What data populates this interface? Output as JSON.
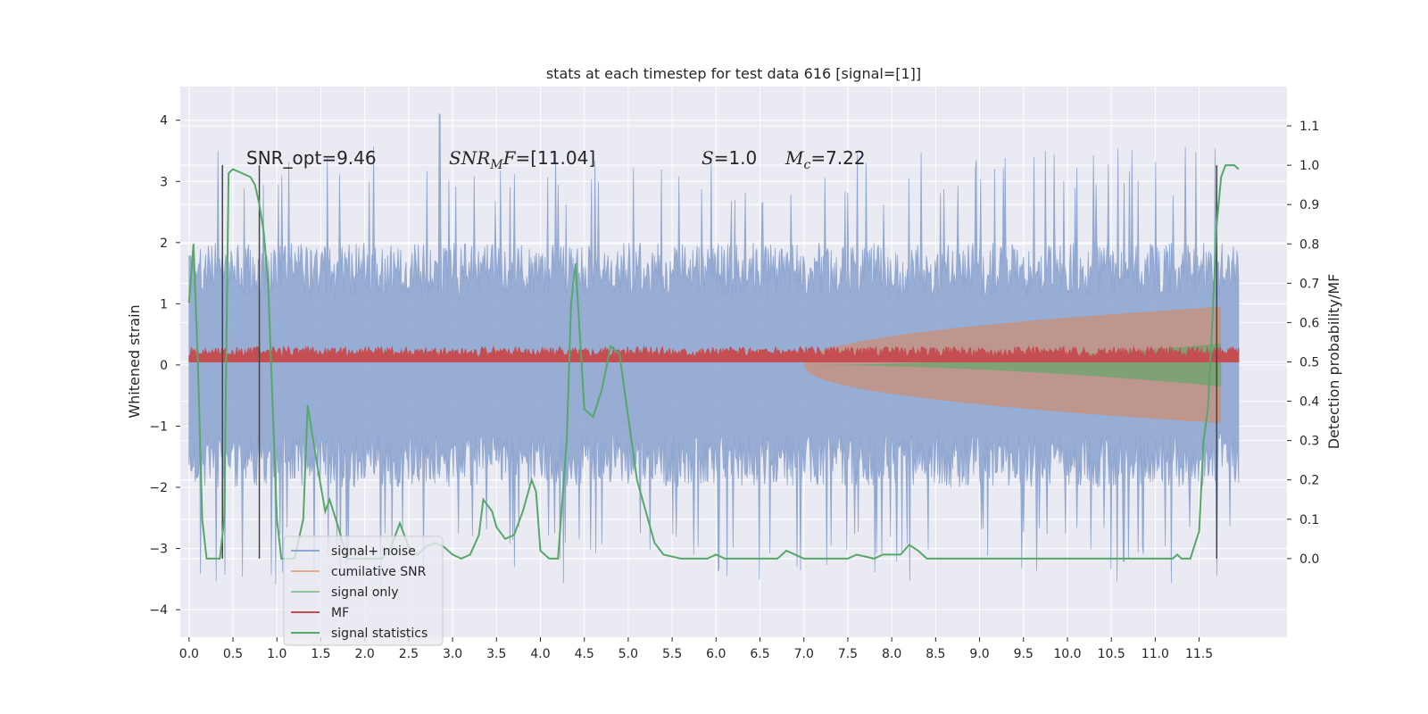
{
  "chart_data": {
    "type": "line",
    "title": "stats at each timestep for test data 616 [signal=[1]]",
    "xlabel": "",
    "ylabel": "Whitened strain",
    "ylabel_right": "Detection probability/MF",
    "xlim": [
      -0.1,
      12.5
    ],
    "ylim": [
      -4.45,
      4.55
    ],
    "ylim_right": [
      -0.2,
      1.2
    ],
    "x_ticks": [
      "0.0",
      "0.5",
      "1.0",
      "1.5",
      "2.0",
      "2.5",
      "3.0",
      "3.5",
      "4.0",
      "4.5",
      "5.0",
      "5.5",
      "6.0",
      "6.5",
      "7.0",
      "7.5",
      "8.0",
      "8.5",
      "9.0",
      "9.5",
      "10.0",
      "10.5",
      "11.0",
      "11.5"
    ],
    "y_ticks_left": [
      "−4",
      "−3",
      "−2",
      "−1",
      "0",
      "1",
      "2",
      "3",
      "4"
    ],
    "y_ticks_right": [
      "0.0",
      "0.1",
      "0.2",
      "0.3",
      "0.4",
      "0.5",
      "0.6",
      "0.7",
      "0.8",
      "0.9",
      "1.0",
      "1.1"
    ],
    "annotations": {
      "snr_opt": "SNR_opt=9.46",
      "snr_mf_a": "SNR",
      "snr_mf_sub": "M",
      "snr_mf_b": "F",
      "snr_mf_c": "=[11.04]",
      "s_a": "S",
      "s_b": "=1.0",
      "mc_a": "M",
      "mc_sub": "c",
      "mc_b": "=7.22"
    },
    "series": [
      {
        "name": "signal+ noise",
        "color": "#8fa6d0",
        "envelope": {
          "t_start": 0.0,
          "t_end": 11.95,
          "typical_amp": 2.0,
          "peak_amp": 4.1
        }
      },
      {
        "name": "cumilative SNR",
        "color": "#dd8452",
        "envelope": {
          "t_start": 7.0,
          "t_end": 11.75,
          "max_amp": 0.95
        }
      },
      {
        "name": "signal only",
        "color": "#55a868",
        "envelope": {
          "t_start": 7.0,
          "t_end": 11.75,
          "max_amp": 0.35
        }
      },
      {
        "name": "MF",
        "color": "#c44e52",
        "band": {
          "t_start": 0.0,
          "t_end": 11.95,
          "low": 0.05,
          "high": 0.3
        }
      },
      {
        "name": "signal statistics",
        "color": "#55a868",
        "axis": "right",
        "points": [
          [
            0.0,
            0.65
          ],
          [
            0.05,
            0.8
          ],
          [
            0.1,
            0.5
          ],
          [
            0.15,
            0.1
          ],
          [
            0.2,
            0.0
          ],
          [
            0.3,
            0.0
          ],
          [
            0.35,
            0.0
          ],
          [
            0.4,
            0.1
          ],
          [
            0.45,
            0.98
          ],
          [
            0.5,
            0.99
          ],
          [
            0.6,
            0.98
          ],
          [
            0.7,
            0.97
          ],
          [
            0.75,
            0.95
          ],
          [
            0.8,
            0.9
          ],
          [
            0.85,
            0.83
          ],
          [
            0.9,
            0.7
          ],
          [
            0.95,
            0.4
          ],
          [
            1.0,
            0.1
          ],
          [
            1.05,
            0.0
          ],
          [
            1.1,
            0.0
          ],
          [
            1.2,
            0.0
          ],
          [
            1.3,
            0.1
          ],
          [
            1.35,
            0.39
          ],
          [
            1.45,
            0.25
          ],
          [
            1.55,
            0.12
          ],
          [
            1.6,
            0.15
          ],
          [
            1.7,
            0.08
          ],
          [
            1.8,
            0.0
          ],
          [
            2.0,
            0.0
          ],
          [
            2.2,
            0.0
          ],
          [
            2.3,
            0.03
          ],
          [
            2.4,
            0.09
          ],
          [
            2.5,
            0.03
          ],
          [
            2.6,
            0.01
          ],
          [
            2.7,
            0.03
          ],
          [
            2.8,
            0.04
          ],
          [
            2.9,
            0.03
          ],
          [
            3.0,
            0.01
          ],
          [
            3.1,
            0.0
          ],
          [
            3.2,
            0.01
          ],
          [
            3.3,
            0.06
          ],
          [
            3.35,
            0.15
          ],
          [
            3.45,
            0.12
          ],
          [
            3.5,
            0.08
          ],
          [
            3.6,
            0.05
          ],
          [
            3.7,
            0.06
          ],
          [
            3.8,
            0.12
          ],
          [
            3.9,
            0.2
          ],
          [
            3.95,
            0.17
          ],
          [
            4.0,
            0.02
          ],
          [
            4.1,
            0.0
          ],
          [
            4.2,
            0.0
          ],
          [
            4.3,
            0.3
          ],
          [
            4.35,
            0.65
          ],
          [
            4.4,
            0.75
          ],
          [
            4.5,
            0.38
          ],
          [
            4.6,
            0.36
          ],
          [
            4.7,
            0.43
          ],
          [
            4.8,
            0.54
          ],
          [
            4.9,
            0.52
          ],
          [
            5.0,
            0.36
          ],
          [
            5.1,
            0.2
          ],
          [
            5.2,
            0.12
          ],
          [
            5.3,
            0.04
          ],
          [
            5.4,
            0.01
          ],
          [
            5.6,
            0.0
          ],
          [
            5.9,
            0.0
          ],
          [
            6.0,
            0.01
          ],
          [
            6.1,
            0.0
          ],
          [
            6.5,
            0.0
          ],
          [
            6.7,
            0.0
          ],
          [
            6.8,
            0.02
          ],
          [
            6.9,
            0.01
          ],
          [
            7.0,
            0.0
          ],
          [
            7.5,
            0.0
          ],
          [
            7.6,
            0.01
          ],
          [
            7.8,
            0.0
          ],
          [
            7.9,
            0.01
          ],
          [
            8.0,
            0.01
          ],
          [
            8.1,
            0.01
          ],
          [
            8.2,
            0.035
          ],
          [
            8.3,
            0.02
          ],
          [
            8.4,
            0.0
          ],
          [
            9.0,
            0.0
          ],
          [
            11.0,
            0.0
          ],
          [
            11.2,
            0.0
          ],
          [
            11.25,
            0.01
          ],
          [
            11.3,
            0.0
          ],
          [
            11.4,
            0.0
          ],
          [
            11.5,
            0.07
          ],
          [
            11.55,
            0.3
          ],
          [
            11.6,
            0.38
          ],
          [
            11.65,
            0.6
          ],
          [
            11.7,
            0.85
          ],
          [
            11.75,
            0.97
          ],
          [
            11.8,
            1.0
          ],
          [
            11.9,
            1.0
          ],
          [
            11.95,
            0.99
          ]
        ]
      }
    ],
    "vlines": [
      0.38,
      0.8,
      11.7
    ],
    "legend_placement": "lower-left",
    "grid": true
  }
}
